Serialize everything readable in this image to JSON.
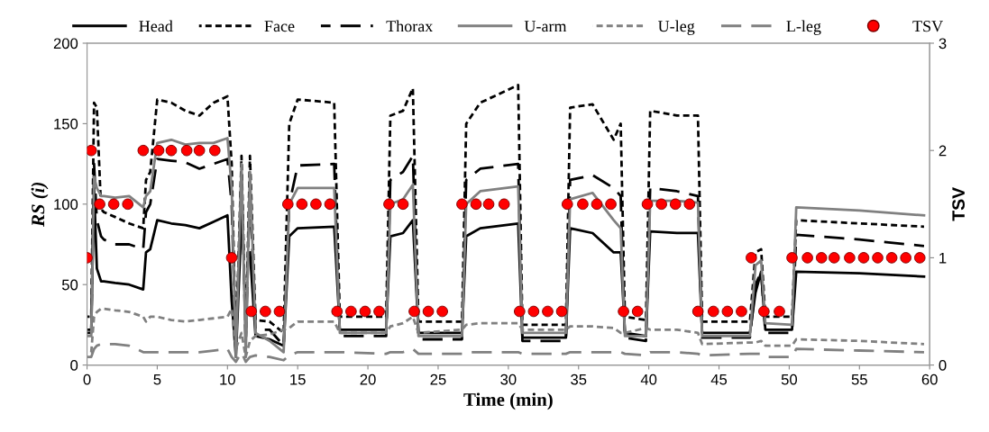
{
  "chart_data": {
    "type": "line",
    "xlabel": "Time (min)",
    "ylabel": "RS (i)",
    "y2label": "TSV",
    "x": [
      0,
      0.3,
      0.5,
      0.7,
      1.0,
      1.2,
      2.0,
      3.0,
      4.0,
      4.2,
      4.5,
      5.0,
      6.0,
      7.0,
      8.0,
      9.0,
      10.0,
      10.3,
      10.6,
      11.0,
      11.3,
      11.6,
      12.0,
      13.0,
      14.0,
      14.4,
      15.0,
      17.6,
      18.0,
      21.3,
      21.6,
      22.5,
      23.2,
      23.6,
      26.7,
      27.0,
      28.0,
      30.7,
      31.0,
      34.1,
      34.4,
      36.0,
      37.5,
      38.0,
      38.3,
      39.8,
      40.1,
      42.0,
      43.5,
      43.8,
      47.2,
      47.6,
      48.0,
      48.3,
      50.2,
      50.5,
      55.0,
      59.6
    ],
    "xlim": [
      0,
      60
    ],
    "xticks": [
      0,
      5,
      10,
      15,
      20,
      25,
      30,
      35,
      40,
      45,
      50,
      55,
      60
    ],
    "ylim": [
      0,
      200
    ],
    "yticks": [
      0,
      50,
      100,
      150,
      200
    ],
    "y2lim": [
      0,
      3
    ],
    "y2ticks": [
      0,
      1,
      2,
      3
    ],
    "legend": "top",
    "grid": false,
    "series": [
      {
        "name": "Head",
        "color": "#000000",
        "line_style": "solid",
        "values": [
          20,
          20,
          110,
          60,
          52,
          52,
          51,
          50,
          47,
          70,
          72,
          90,
          88,
          87,
          85,
          89,
          93,
          40,
          5,
          90,
          null,
          70,
          18,
          16,
          12,
          80,
          85,
          86,
          22,
          22,
          80,
          82,
          90,
          20,
          20,
          80,
          85,
          88,
          17,
          17,
          85,
          82,
          70,
          70,
          20,
          18,
          83,
          82,
          82,
          20,
          20,
          45,
          58,
          22,
          22,
          58,
          57,
          55
        ]
      },
      {
        "name": "Face",
        "color": "#000000",
        "line_style": "dotted",
        "values": [
          30,
          30,
          163,
          160,
          97,
          95,
          92,
          88,
          85,
          115,
          120,
          165,
          163,
          158,
          155,
          163,
          167,
          125,
          10,
          130,
          15,
          130,
          28,
          27,
          20,
          150,
          165,
          163,
          30,
          30,
          155,
          158,
          172,
          27,
          27,
          150,
          163,
          174,
          25,
          25,
          160,
          162,
          140,
          150,
          30,
          28,
          158,
          155,
          155,
          27,
          27,
          70,
          72,
          30,
          30,
          90,
          88,
          86
        ]
      },
      {
        "name": "Thorax",
        "color": "#000000",
        "line_style": "dashed",
        "values": [
          22,
          22,
          125,
          90,
          80,
          78,
          75,
          75,
          72,
          95,
          100,
          128,
          127,
          126,
          122,
          125,
          128,
          100,
          8,
          120,
          12,
          110,
          22,
          22,
          12,
          100,
          124,
          125,
          18,
          18,
          115,
          120,
          130,
          16,
          16,
          115,
          122,
          125,
          15,
          15,
          115,
          118,
          110,
          105,
          17,
          15,
          110,
          108,
          105,
          17,
          17,
          50,
          58,
          20,
          20,
          81,
          78,
          74
        ]
      },
      {
        "name": "U-arm",
        "color": "#808080",
        "line_style": "solid",
        "values": [
          18,
          18,
          117,
          110,
          105,
          105,
          104,
          105,
          98,
          105,
          108,
          138,
          140,
          137,
          138,
          138,
          141,
          110,
          5,
          125,
          5,
          120,
          20,
          15,
          8,
          100,
          110,
          110,
          20,
          20,
          100,
          103,
          112,
          18,
          18,
          100,
          108,
          111,
          20,
          20,
          103,
          107,
          90,
          85,
          18,
          18,
          102,
          102,
          101,
          18,
          18,
          62,
          65,
          26,
          25,
          98,
          96,
          93
        ]
      },
      {
        "name": "U-leg",
        "color": "#808080",
        "line_style": "dotted",
        "values": [
          8,
          8,
          30,
          33,
          35,
          35,
          34,
          33,
          30,
          27,
          30,
          30,
          28,
          27,
          28,
          29,
          30,
          35,
          10,
          20,
          5,
          15,
          18,
          19,
          22,
          23,
          27,
          27,
          20,
          20,
          24,
          26,
          30,
          20,
          22,
          25,
          26,
          26,
          22,
          22,
          24,
          24,
          23,
          20,
          20,
          23,
          22,
          22,
          20,
          13,
          14,
          14,
          15,
          12,
          12,
          16,
          15,
          13
        ]
      },
      {
        "name": "L-leg",
        "color": "#808080",
        "line_style": "dashed",
        "values": [
          5,
          5,
          10,
          12,
          13,
          13,
          13,
          12,
          8,
          8,
          8,
          8,
          8,
          8,
          8,
          9,
          10,
          5,
          2,
          8,
          2,
          5,
          6,
          5,
          3,
          6,
          8,
          8,
          8,
          7,
          8,
          8,
          10,
          7,
          7,
          8,
          8,
          8,
          7,
          7,
          8,
          8,
          8,
          8,
          7,
          6,
          8,
          8,
          7,
          6,
          7,
          7,
          7,
          5,
          5,
          10,
          9,
          8
        ]
      },
      {
        "name": "TSV",
        "type": "scatter",
        "axis": "y2",
        "marker": "circle",
        "color": "#ff0000",
        "x": [
          0,
          0.3,
          0.9,
          1.9,
          2.9,
          4.0,
          5.1,
          6.0,
          7.1,
          8.0,
          9.1,
          10.3,
          11.7,
          12.7,
          13.7,
          14.3,
          15.3,
          16.3,
          17.3,
          17.8,
          18.8,
          19.8,
          20.8,
          21.5,
          22.5,
          23.3,
          24.3,
          25.3,
          26.7,
          27.7,
          28.6,
          29.7,
          30.8,
          31.8,
          32.8,
          33.8,
          34.2,
          35.3,
          36.3,
          37.3,
          38.2,
          39.2,
          39.9,
          40.9,
          41.9,
          42.9,
          43.5,
          44.6,
          45.6,
          46.6,
          47.3,
          48.2,
          49.3,
          50.2,
          51.3,
          52.3,
          53.2,
          54.3,
          55.3,
          56.3,
          57.3,
          58.3,
          59.3
        ],
        "values": [
          1,
          2,
          1.5,
          1.5,
          1.5,
          2,
          2,
          2,
          2,
          2,
          2,
          1,
          0.5,
          0.5,
          0.5,
          1.5,
          1.5,
          1.5,
          1.5,
          0.5,
          0.5,
          0.5,
          0.5,
          1.5,
          1.5,
          0.5,
          0.5,
          0.5,
          1.5,
          1.5,
          1.5,
          1.5,
          0.5,
          0.5,
          0.5,
          0.5,
          1.5,
          1.5,
          1.5,
          1.5,
          0.5,
          0.5,
          1.5,
          1.5,
          1.5,
          1.5,
          0.5,
          0.5,
          0.5,
          0.5,
          1,
          0.5,
          0.5,
          1,
          1,
          1,
          1,
          1,
          1,
          1,
          1,
          1,
          1
        ]
      }
    ]
  }
}
